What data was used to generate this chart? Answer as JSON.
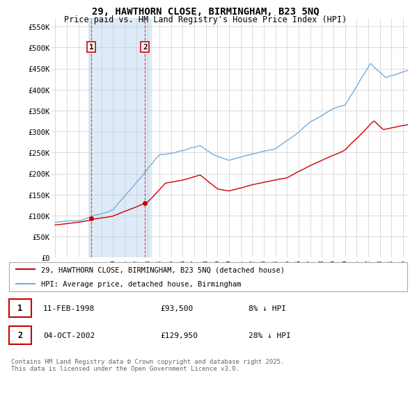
{
  "title_line1": "29, HAWTHORN CLOSE, BIRMINGHAM, B23 5NQ",
  "title_line2": "Price paid vs. HM Land Registry's House Price Index (HPI)",
  "ylabel_ticks": [
    "£0",
    "£50K",
    "£100K",
    "£150K",
    "£200K",
    "£250K",
    "£300K",
    "£350K",
    "£400K",
    "£450K",
    "£500K",
    "£550K"
  ],
  "ytick_values": [
    0,
    50000,
    100000,
    150000,
    200000,
    250000,
    300000,
    350000,
    400000,
    450000,
    500000,
    550000
  ],
  "ylim": [
    0,
    570000
  ],
  "xlim_start": 1994.7,
  "xlim_end": 2025.5,
  "xtick_years": [
    1995,
    1996,
    1997,
    1998,
    1999,
    2000,
    2001,
    2002,
    2003,
    2004,
    2005,
    2006,
    2007,
    2008,
    2009,
    2010,
    2011,
    2012,
    2013,
    2014,
    2015,
    2016,
    2017,
    2018,
    2019,
    2020,
    2021,
    2022,
    2023,
    2024,
    2025
  ],
  "property_color": "#cc0000",
  "hpi_color": "#7aabdb",
  "legend_property_label": "29, HAWTHORN CLOSE, BIRMINGHAM, B23 5NQ (detached house)",
  "legend_hpi_label": "HPI: Average price, detached house, Birmingham",
  "transaction1_date": "11-FEB-1998",
  "transaction1_price": "£93,500",
  "transaction1_hpi": "8% ↓ HPI",
  "transaction1_x": 1998.12,
  "transaction1_y": 93500,
  "transaction2_date": "04-OCT-2002",
  "transaction2_price": "£129,950",
  "transaction2_hpi": "28% ↓ HPI",
  "transaction2_x": 2002.75,
  "transaction2_y": 129950,
  "copyright_text": "Contains HM Land Registry data © Crown copyright and database right 2025.\nThis data is licensed under the Open Government Licence v3.0.",
  "background_color": "#ffffff",
  "grid_color": "#cccccc",
  "highlight_x_start": 1997.9,
  "highlight_x_end": 2003.3,
  "highlight_color": "#ddeaf7"
}
